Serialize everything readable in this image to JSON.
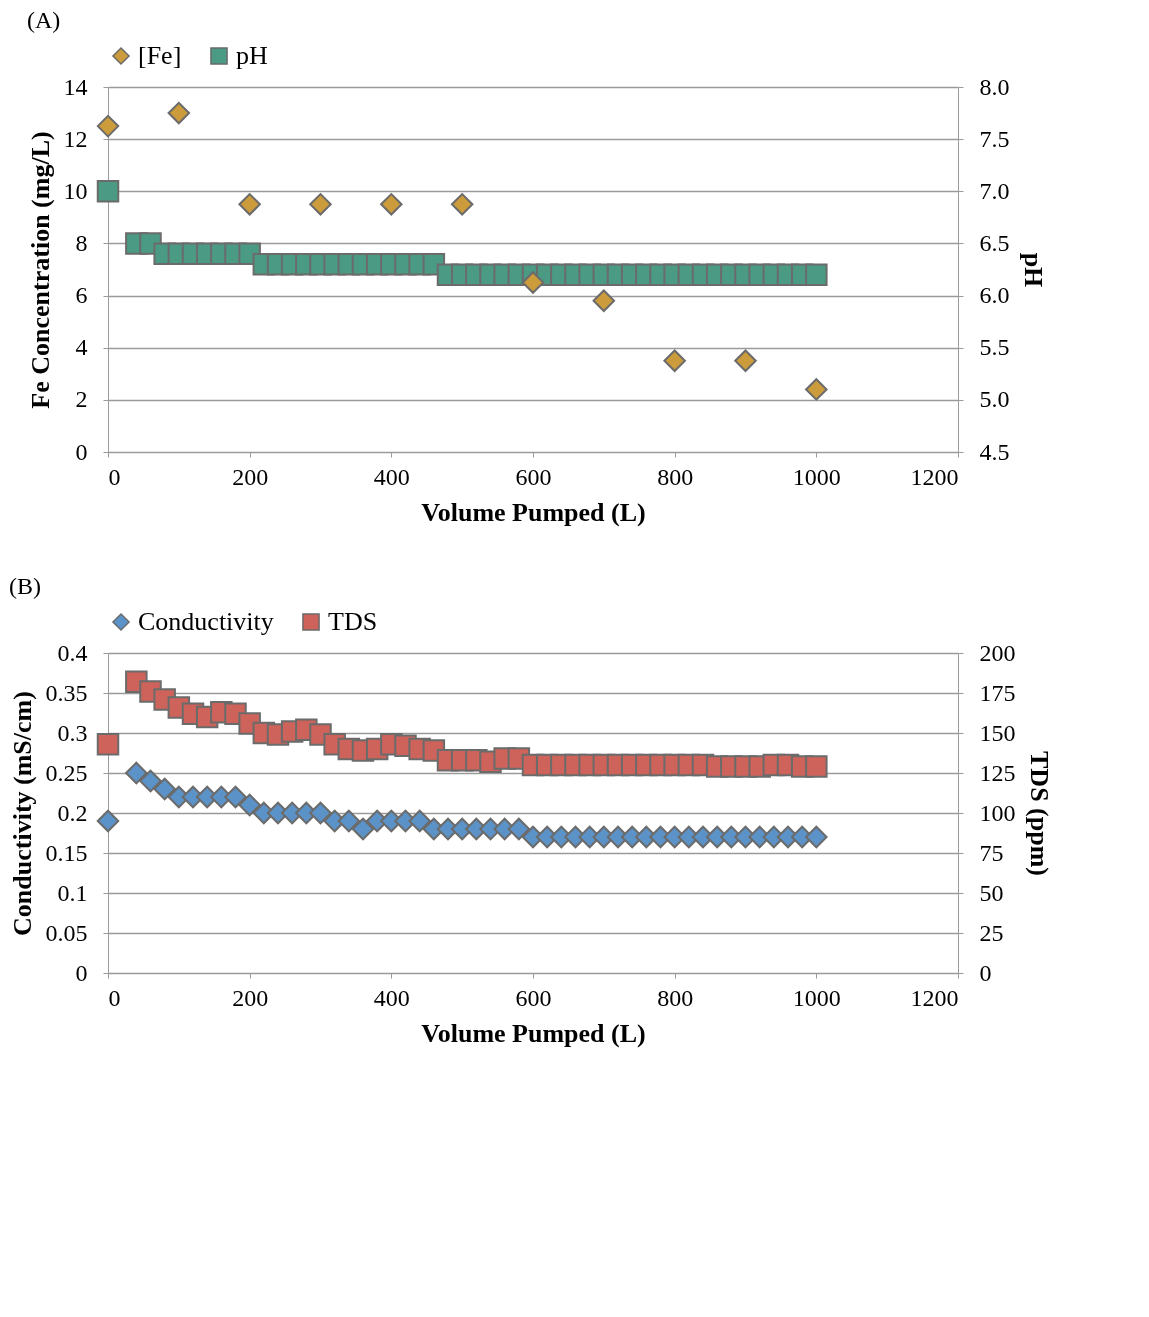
{
  "chart_data": [
    {
      "type": "scatter",
      "title": "(A)",
      "xlabel": "Volume Pumped (L)",
      "ylabel": "Fe Concentration (mg/L)",
      "y2label": "pH",
      "xlim": [
        0,
        1200
      ],
      "xticks": [
        0,
        200,
        400,
        600,
        800,
        1000,
        1200
      ],
      "ylim": [
        0,
        14
      ],
      "yticks": [
        0,
        2,
        4,
        6,
        8,
        10,
        12,
        14
      ],
      "y2lim": [
        4.5,
        8
      ],
      "y2ticks": [
        {
          "value": 4.5,
          "label": "4.5"
        },
        {
          "value": 5,
          "label": "5.0"
        },
        {
          "value": 5.5,
          "label": "5.5"
        },
        {
          "value": 6,
          "label": "6.0"
        },
        {
          "value": 6.5,
          "label": "6.5"
        },
        {
          "value": 7,
          "label": "7.0"
        },
        {
          "value": 7.5,
          "label": "7.5"
        },
        {
          "value": 8,
          "label": "8.0"
        }
      ],
      "grid": "y",
      "legend": "top",
      "series": [
        {
          "name": "[Fe]",
          "color": "#cc9c3c",
          "marker": "diamond",
          "x": [
            0,
            100,
            200,
            300,
            400,
            500,
            600,
            700,
            800,
            900,
            1000
          ],
          "values": [
            12.5,
            13,
            9.5,
            9.5,
            9.5,
            9.5,
            6.5,
            5.8,
            3.5,
            3.5,
            2.4
          ]
        },
        {
          "name": "pH",
          "color": "#4a9a84",
          "marker": "square",
          "axis": "y2",
          "x": [
            0,
            40,
            60,
            80,
            100,
            120,
            140,
            160,
            180,
            200,
            220,
            240,
            260,
            280,
            300,
            320,
            340,
            360,
            380,
            400,
            420,
            440,
            460,
            480,
            500,
            520,
            540,
            560,
            580,
            600,
            620,
            640,
            660,
            680,
            700,
            720,
            740,
            760,
            780,
            800,
            820,
            840,
            860,
            880,
            900,
            920,
            940,
            960,
            980,
            1000
          ],
          "values": [
            7.0,
            6.5,
            6.5,
            6.4,
            6.4,
            6.4,
            6.4,
            6.4,
            6.4,
            6.4,
            6.3,
            6.3,
            6.3,
            6.3,
            6.3,
            6.3,
            6.3,
            6.3,
            6.3,
            6.3,
            6.3,
            6.3,
            6.3,
            6.2,
            6.2,
            6.2,
            6.2,
            6.2,
            6.2,
            6.2,
            6.2,
            6.2,
            6.2,
            6.2,
            6.2,
            6.2,
            6.2,
            6.2,
            6.2,
            6.2,
            6.2,
            6.2,
            6.2,
            6.2,
            6.2,
            6.2,
            6.2,
            6.2,
            6.2,
            6.2
          ]
        }
      ]
    },
    {
      "type": "scatter",
      "title": "(B)",
      "xlabel": "Volume Pumped (L)",
      "ylabel": "Conductivity (mS/cm)",
      "y2label": "TDS (ppm)",
      "xlim": [
        0,
        1200
      ],
      "xticks": [
        0,
        200,
        400,
        600,
        800,
        1000,
        1200
      ],
      "ylim": [
        0,
        0.4
      ],
      "yticks": [
        0,
        0.05,
        0.1,
        0.15,
        0.2,
        0.25,
        0.3,
        0.35,
        0.4
      ],
      "y2lim": [
        0,
        200
      ],
      "y2ticks": [
        0,
        25,
        50,
        75,
        100,
        125,
        150,
        175,
        200
      ],
      "grid": "y",
      "legend": "top",
      "series": [
        {
          "name": "Conductivity",
          "color": "#5b93c8",
          "marker": "diamond",
          "x": [
            0,
            40,
            60,
            80,
            100,
            120,
            140,
            160,
            180,
            200,
            220,
            240,
            260,
            280,
            300,
            320,
            340,
            360,
            380,
            400,
            420,
            440,
            460,
            480,
            500,
            520,
            540,
            560,
            580,
            600,
            620,
            640,
            660,
            680,
            700,
            720,
            740,
            760,
            780,
            800,
            820,
            840,
            860,
            880,
            900,
            920,
            940,
            960,
            980,
            1000
          ],
          "values": [
            0.19,
            0.25,
            0.24,
            0.23,
            0.22,
            0.22,
            0.22,
            0.22,
            0.22,
            0.21,
            0.2,
            0.2,
            0.2,
            0.2,
            0.2,
            0.19,
            0.19,
            0.18,
            0.19,
            0.19,
            0.19,
            0.19,
            0.18,
            0.18,
            0.18,
            0.18,
            0.18,
            0.18,
            0.18,
            0.17,
            0.17,
            0.17,
            0.17,
            0.17,
            0.17,
            0.17,
            0.17,
            0.17,
            0.17,
            0.17,
            0.17,
            0.17,
            0.17,
            0.17,
            0.17,
            0.17,
            0.17,
            0.17,
            0.17,
            0.17
          ]
        },
        {
          "name": "TDS",
          "color": "#cd635a",
          "marker": "square",
          "axis": "y2",
          "x": [
            0,
            40,
            60,
            80,
            100,
            120,
            140,
            160,
            180,
            200,
            220,
            240,
            260,
            280,
            300,
            320,
            340,
            360,
            380,
            400,
            420,
            440,
            460,
            480,
            500,
            520,
            540,
            560,
            580,
            600,
            620,
            640,
            660,
            680,
            700,
            720,
            740,
            760,
            780,
            800,
            820,
            840,
            860,
            880,
            900,
            920,
            940,
            960,
            980,
            1000
          ],
          "values": [
            143,
            182,
            176,
            171,
            166,
            162,
            160,
            163,
            162,
            156,
            150,
            149,
            151,
            152,
            149,
            143,
            140,
            139,
            140,
            143,
            142,
            140,
            139,
            133,
            133,
            133,
            132,
            134,
            134,
            130,
            130,
            130,
            130,
            130,
            130,
            130,
            130,
            130,
            130,
            130,
            130,
            130,
            129,
            129,
            129,
            129,
            130,
            130,
            129,
            129
          ]
        }
      ]
    }
  ]
}
